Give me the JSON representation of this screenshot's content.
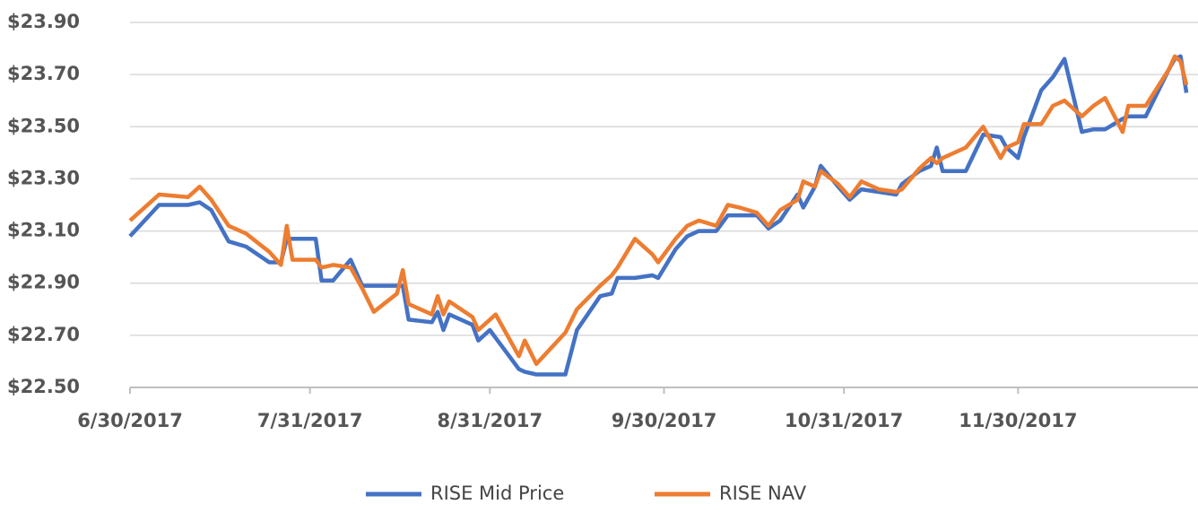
{
  "chart_data": {
    "type": "line",
    "x": [
      "6/30/2017",
      "7/5/2017",
      "7/10/2017",
      "7/12/2017",
      "7/14/2017",
      "7/17/2017",
      "7/20/2017",
      "7/24/2017",
      "7/26/2017",
      "7/27/2017",
      "7/28/2017",
      "8/1/2017",
      "8/2/2017",
      "8/4/2017",
      "8/7/2017",
      "8/9/2017",
      "8/11/2017",
      "8/15/2017",
      "8/16/2017",
      "8/17/2017",
      "8/21/2017",
      "8/22/2017",
      "8/23/2017",
      "8/24/2017",
      "8/28/2017",
      "8/29/2017",
      "8/31/2017",
      "9/1/2017",
      "9/5/2017",
      "9/6/2017",
      "9/8/2017",
      "9/13/2017",
      "9/15/2017",
      "9/19/2017",
      "9/21/2017",
      "9/22/2017",
      "9/25/2017",
      "9/28/2017",
      "9/29/2017",
      "10/2/2017",
      "10/4/2017",
      "10/6/2017",
      "10/9/2017",
      "10/11/2017",
      "10/13/2017",
      "10/16/2017",
      "10/18/2017",
      "10/20/2017",
      "10/23/2017",
      "10/24/2017",
      "10/26/2017",
      "10/27/2017",
      "10/30/2017",
      "11/1/2017",
      "11/3/2017",
      "11/6/2017",
      "11/9/2017",
      "11/10/2017",
      "11/13/2017",
      "11/15/2017",
      "11/16/2017",
      "11/17/2017",
      "11/21/2017",
      "11/24/2017",
      "11/27/2017",
      "11/28/2017",
      "11/30/2017",
      "12/1/2017",
      "12/4/2017",
      "12/6/2017",
      "12/8/2017",
      "12/11/2017",
      "12/13/2017",
      "12/15/2017",
      "12/18/2017",
      "12/19/2017",
      "12/22/2017",
      "12/26/2017",
      "12/27/2017",
      "12/28/2017",
      "12/29/2017"
    ],
    "series": [
      {
        "name": "RISE Mid Price",
        "color": "#4472c4",
        "values": [
          23.08,
          23.2,
          23.2,
          23.21,
          23.18,
          23.06,
          23.04,
          22.98,
          22.98,
          23.07,
          23.07,
          23.07,
          22.91,
          22.91,
          22.99,
          22.89,
          22.89,
          22.89,
          22.89,
          22.76,
          22.75,
          22.79,
          22.72,
          22.78,
          22.74,
          22.68,
          22.72,
          22.69,
          22.57,
          22.56,
          22.55,
          22.55,
          22.72,
          22.85,
          22.86,
          22.92,
          22.92,
          22.93,
          22.92,
          23.03,
          23.08,
          23.1,
          23.1,
          23.16,
          23.16,
          23.16,
          23.11,
          23.14,
          23.24,
          23.19,
          23.27,
          23.35,
          23.27,
          23.22,
          23.26,
          23.25,
          23.24,
          23.28,
          23.33,
          23.35,
          23.42,
          23.33,
          23.33,
          23.47,
          23.46,
          23.42,
          23.38,
          23.46,
          23.64,
          23.69,
          23.76,
          23.48,
          23.49,
          23.49,
          23.53,
          23.54,
          23.54,
          23.72,
          23.76,
          23.77,
          23.63
        ]
      },
      {
        "name": "RISE NAV",
        "color": "#ed7d31",
        "values": [
          23.14,
          23.24,
          23.23,
          23.27,
          23.22,
          23.12,
          23.09,
          23.02,
          22.97,
          23.12,
          22.99,
          22.99,
          22.96,
          22.97,
          22.96,
          22.88,
          22.79,
          22.86,
          22.95,
          22.82,
          22.78,
          22.85,
          22.78,
          22.83,
          22.77,
          22.72,
          22.76,
          22.78,
          22.62,
          22.68,
          22.59,
          22.71,
          22.8,
          22.89,
          22.93,
          22.96,
          23.07,
          23.01,
          22.98,
          23.07,
          23.12,
          23.14,
          23.12,
          23.2,
          23.19,
          23.17,
          23.12,
          23.18,
          23.22,
          23.29,
          23.27,
          23.33,
          23.28,
          23.23,
          23.29,
          23.26,
          23.25,
          23.26,
          23.34,
          23.38,
          23.36,
          23.38,
          23.42,
          23.5,
          23.38,
          23.42,
          23.44,
          23.51,
          23.51,
          23.58,
          23.6,
          23.54,
          23.58,
          23.61,
          23.48,
          23.58,
          23.58,
          23.72,
          23.77,
          23.75,
          23.66
        ]
      }
    ],
    "xlim": [
      "6/30/2017",
      "12/31/2017"
    ],
    "xticks": [
      "6/30/2017",
      "7/31/2017",
      "8/31/2017",
      "9/30/2017",
      "10/31/2017",
      "11/30/2017"
    ],
    "ylim": [
      22.5,
      23.9
    ],
    "yticks": [
      {
        "value": 22.5,
        "label": "$22.50"
      },
      {
        "value": 22.7,
        "label": "$22.70"
      },
      {
        "value": 22.9,
        "label": "$22.90"
      },
      {
        "value": 23.1,
        "label": "$23.10"
      },
      {
        "value": 23.3,
        "label": "$23.30"
      },
      {
        "value": 23.5,
        "label": "$23.50"
      },
      {
        "value": 23.7,
        "label": "$23.70"
      },
      {
        "value": 23.9,
        "label": "$23.90"
      }
    ],
    "grid": true,
    "legend": "bottom"
  }
}
